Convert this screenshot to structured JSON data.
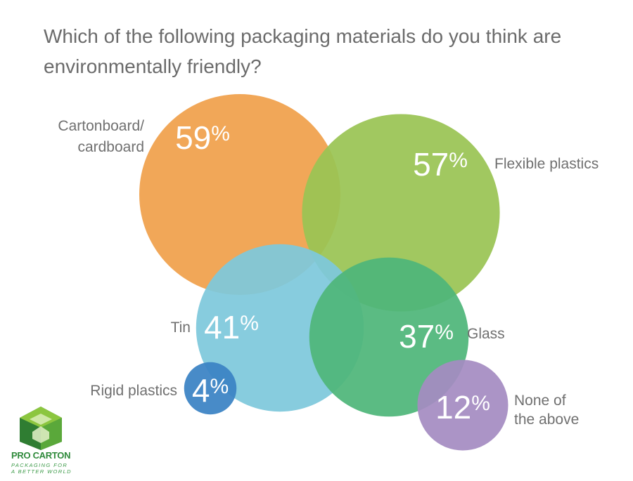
{
  "chart_data": {
    "type": "bubble",
    "title": "Which of the following packaging materials do you think are environmentally friendly?",
    "unit": "%",
    "items": [
      {
        "label": "Cartonboard/ cardboard",
        "label_lines": [
          "Cartonboard/",
          "cardboard"
        ],
        "value": 59,
        "color": "#f0a04b"
      },
      {
        "label": "Flexible plastics",
        "label_lines": [
          "Flexible plastics"
        ],
        "value": 57,
        "color": "#9ac454"
      },
      {
        "label": "Tin",
        "label_lines": [
          "Tin"
        ],
        "value": 41,
        "color": "#7ec8dc"
      },
      {
        "label": "Glass",
        "label_lines": [
          "Glass"
        ],
        "value": 37,
        "color": "#4fb67a"
      },
      {
        "label": "Rigid plastics",
        "label_lines": [
          "Rigid plastics"
        ],
        "value": 4,
        "color": "#3a82c4"
      },
      {
        "label": "None of the above",
        "label_lines": [
          "None of",
          "the above"
        ],
        "value": 12,
        "color": "#a58cc2"
      }
    ]
  },
  "logo": {
    "name": "PRO CARTON",
    "tagline_lines": [
      "PACKAGING FOR",
      "A BETTER WORLD"
    ],
    "colors": {
      "dark": "#2f7d32",
      "light": "#8cc63f"
    }
  }
}
